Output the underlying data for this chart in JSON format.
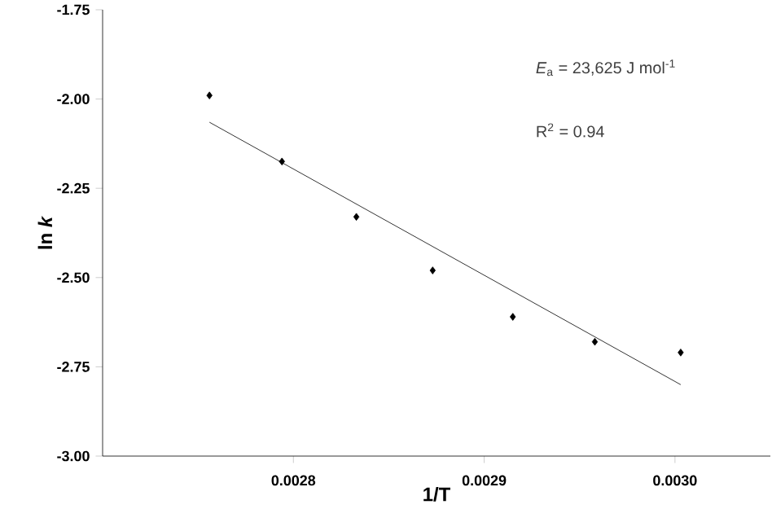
{
  "chart_data": {
    "type": "scatter",
    "xlabel": "1/T",
    "ylabel": "ln *k*",
    "series": [
      {
        "color": "#000000",
        "marker": "diamond",
        "x": [
          0.002756,
          0.002794,
          0.002833,
          0.002873,
          0.002915,
          0.002958,
          0.003003
        ],
        "values": [
          -1.99,
          -2.175,
          -2.33,
          -2.48,
          -2.61,
          -2.68,
          -2.71
        ]
      },
      {
        "type": "line",
        "color": "#000000",
        "line_style": "solid",
        "x": [
          0.002756,
          0.003003
        ],
        "values": [
          -2.065,
          -2.8
        ]
      }
    ],
    "xlim": [
      0.0027,
      0.00305
    ],
    "ylim": [
      -3.0,
      -1.75
    ],
    "xticks": [
      {
        "value": 0.0028,
        "label": "0.0028"
      },
      {
        "value": 0.0029,
        "label": "0.0029"
      },
      {
        "value": 0.003,
        "label": "0.0030"
      }
    ],
    "yticks": [
      {
        "value": -3.0,
        "label": "-3.00"
      },
      {
        "value": -2.75,
        "label": "-2.75"
      },
      {
        "value": -2.5,
        "label": "-2.50"
      },
      {
        "value": -2.25,
        "label": "-2.25"
      },
      {
        "value": -2.0,
        "label": "-2.00"
      },
      {
        "value": -1.75,
        "label": "-1.75"
      }
    ],
    "annotations": [
      "*E*$_{a}$ = 23,625 J mol$^{-1}$",
      "R$^{2}$ = 0.94"
    ],
    "grid": false
  }
}
